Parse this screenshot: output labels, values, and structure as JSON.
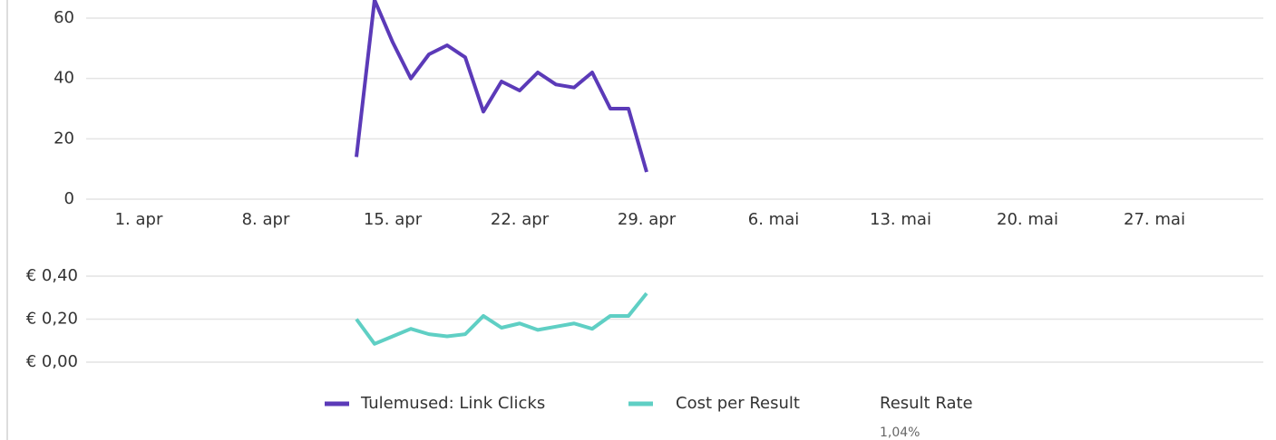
{
  "chart_data": [
    {
      "type": "line",
      "categories": [
        "1. apr",
        null,
        null,
        null,
        null,
        null,
        null,
        "8. apr",
        null,
        null,
        null,
        null,
        null,
        null,
        "15. apr",
        null,
        null,
        null,
        null,
        null,
        null,
        "22. apr",
        null,
        null,
        null,
        null,
        null,
        null,
        "29. apr",
        null,
        null,
        null,
        null,
        null,
        null,
        "6. mai",
        null,
        null,
        null,
        null,
        null,
        null,
        "13. mai",
        null,
        null,
        null,
        null,
        null,
        null,
        "20. mai",
        null,
        null,
        null,
        null,
        null,
        null,
        "27. mai",
        null,
        null,
        null,
        null,
        null
      ],
      "series": [
        {
          "name": "Tulemused: Link Clicks",
          "color": "#5b3ab8",
          "values": [
            null,
            null,
            null,
            null,
            null,
            null,
            null,
            null,
            null,
            null,
            null,
            null,
            14,
            66,
            52,
            40,
            48,
            51,
            47,
            29,
            39,
            36,
            42,
            38,
            37,
            42,
            30,
            30,
            9,
            null,
            null,
            null,
            null,
            null,
            null,
            null,
            null,
            null,
            null,
            null,
            null,
            null,
            null,
            null,
            null,
            null,
            null,
            null,
            null,
            null,
            null,
            null,
            null,
            null,
            null,
            null,
            null,
            null,
            null,
            null,
            null,
            null
          ]
        }
      ],
      "ylim": [
        0,
        60
      ],
      "yticks": [
        0,
        20,
        40,
        60
      ],
      "grid": true
    },
    {
      "type": "line",
      "series": [
        {
          "name": "Cost per Result",
          "color": "#5fcfc4",
          "values": [
            null,
            null,
            null,
            null,
            null,
            null,
            null,
            null,
            null,
            null,
            null,
            null,
            0.2,
            0.085,
            0.12,
            0.155,
            0.13,
            0.12,
            0.13,
            0.215,
            0.16,
            0.18,
            0.15,
            0.165,
            0.18,
            0.155,
            0.215,
            0.215,
            0.32,
            null,
            null,
            null,
            null,
            null,
            null,
            null,
            null,
            null,
            null,
            null,
            null,
            null,
            null,
            null,
            null,
            null,
            null,
            null,
            null,
            null,
            null,
            null,
            null,
            null,
            null,
            null,
            null,
            null,
            null,
            null,
            null,
            null
          ]
        }
      ],
      "ylim": [
        0,
        0.4
      ],
      "yticks": [
        {
          "value": 0,
          "label": "€ 0,00"
        },
        {
          "value": 0.2,
          "label": "€ 0,20"
        },
        {
          "value": 0.4,
          "label": "€ 0,40"
        }
      ],
      "grid": true
    }
  ],
  "summary": {
    "label": "Result Rate",
    "value": "1,04%"
  }
}
